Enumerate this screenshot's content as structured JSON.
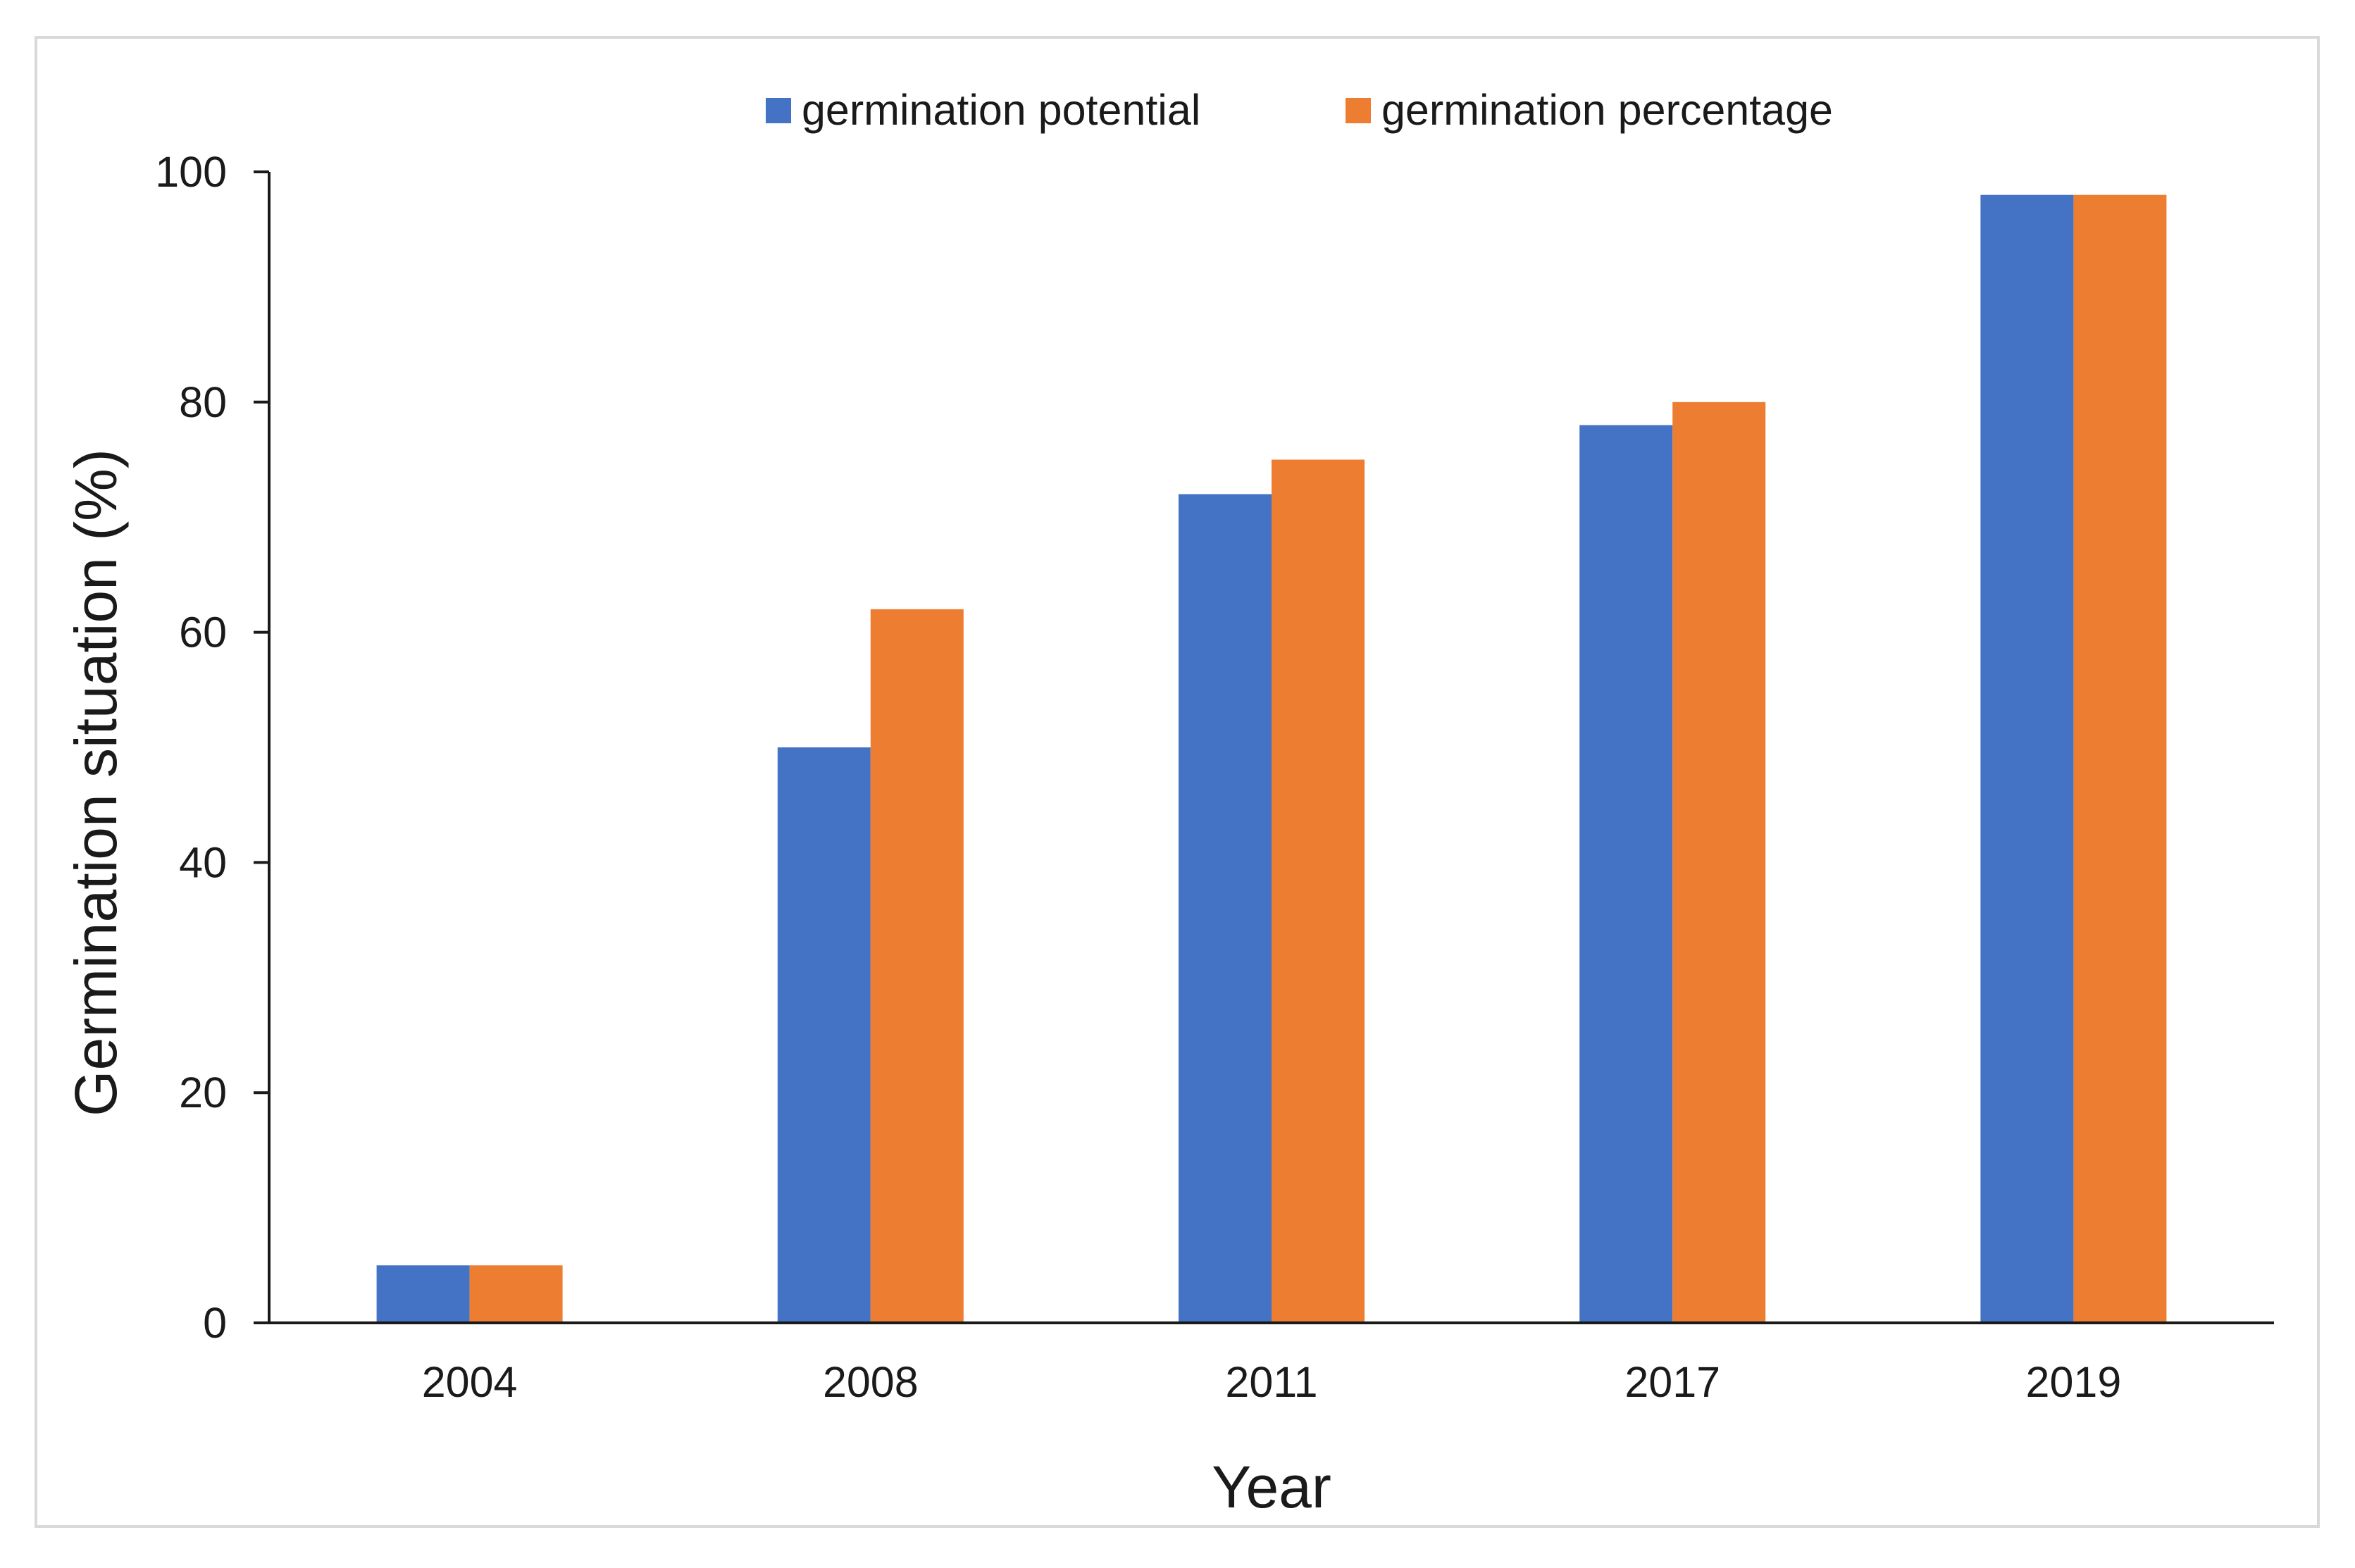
{
  "chart_data": {
    "type": "bar",
    "title": "",
    "xlabel": "Year",
    "ylabel": "Germination situation (%)",
    "categories": [
      "2004",
      "2008",
      "2011",
      "2017",
      "2019"
    ],
    "series": [
      {
        "name": "germination potential",
        "color": "#4472C4",
        "values": [
          5,
          50,
          72,
          78,
          98
        ]
      },
      {
        "name": "germination percentage",
        "color": "#ED7D31",
        "values": [
          5,
          62,
          75,
          80,
          98
        ]
      }
    ],
    "ylim": [
      0,
      100
    ],
    "yticks": [
      0,
      20,
      40,
      60,
      80,
      100
    ],
    "grid": false,
    "legend_position": "top-center"
  }
}
